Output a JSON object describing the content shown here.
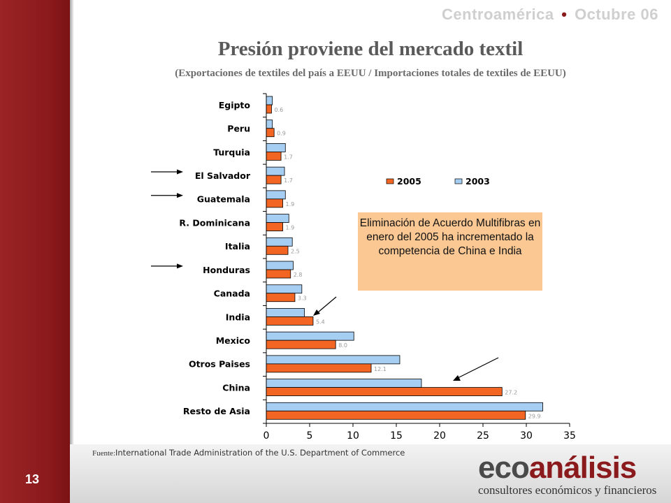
{
  "header": {
    "left": "Centroamérica",
    "separator": "•",
    "right": "Octubre 06"
  },
  "slide_number": "13",
  "footer": {
    "source_label": "Fuente:",
    "source_text": "International Trade Administration  of the U.S. Department of Commerce"
  },
  "logo": {
    "word_part1": "eco",
    "word_part2": "análisis",
    "tagline": "consultores económicos y financieros"
  },
  "annotation": "Eliminación de Acuerdo Multifibras en enero del 2005 ha incrementado la competencia de China e India",
  "colors": {
    "series_2005": "#f26522",
    "series_2003": "#a6cef2",
    "sidebar": "#8b1a1c",
    "note_bg": "#fbc893"
  },
  "chart_data": {
    "type": "bar",
    "orientation": "horizontal",
    "title": "Presión proviene del mercado textil",
    "subtitle": "(Exportaciones de textiles del país a EEUU / Importaciones totales de textiles de EEUU)",
    "categories": [
      "Egipto",
      "Peru",
      "Turquia",
      "El Salvador",
      "Guatemala",
      "R. Dominicana",
      "Italia",
      "Honduras",
      "Canada",
      "India",
      "Mexico",
      "Otros Paises",
      "China",
      "Resto de Asia"
    ],
    "highlighted_categories": [
      "El Salvador",
      "Guatemala",
      "Honduras"
    ],
    "series": [
      {
        "name": "2005",
        "values": [
          0.6,
          0.9,
          1.7,
          1.7,
          1.9,
          1.9,
          2.5,
          2.8,
          3.3,
          5.4,
          8.0,
          12.1,
          27.2,
          29.9
        ],
        "value_labels": [
          "0.6",
          "0.9",
          "1.7",
          "1.7",
          "1.9",
          "1.9",
          "2.5",
          "2.8",
          "3.3",
          "5.4",
          "8.0",
          "12.1",
          "27.2",
          "29.9"
        ]
      },
      {
        "name": "2003",
        "values": [
          0.7,
          0.7,
          2.2,
          2.1,
          2.2,
          2.6,
          3.0,
          3.1,
          4.1,
          4.4,
          10.1,
          15.4,
          17.9,
          31.9
        ]
      }
    ],
    "xlim": [
      0,
      35
    ],
    "x_ticks": [
      "0",
      "5",
      "10",
      "15",
      "20",
      "25",
      "30",
      "35"
    ],
    "legend": "upper-right"
  }
}
